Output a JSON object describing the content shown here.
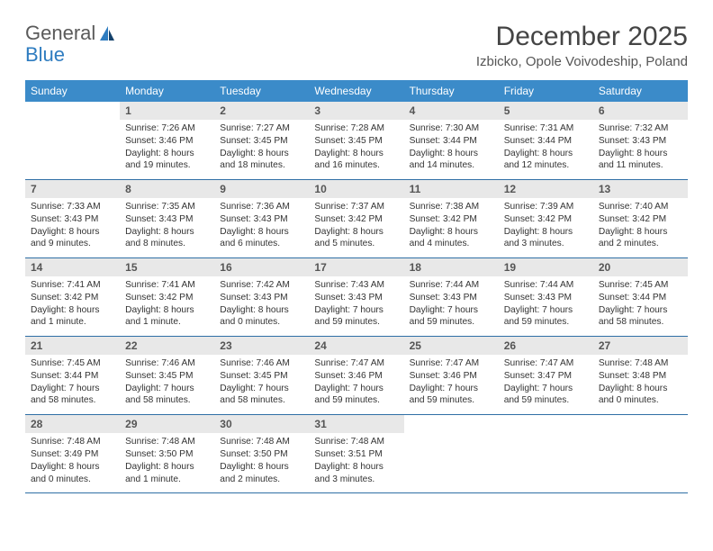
{
  "brand": {
    "part1": "General",
    "part2": "Blue"
  },
  "title": "December 2025",
  "location": "Izbicko, Opole Voivodeship, Poland",
  "colors": {
    "header_bg": "#3b8bc9",
    "header_text": "#ffffff",
    "daynum_bg": "#e8e8e8",
    "rule": "#2f6fa5",
    "brand_gray": "#5a5a5a",
    "brand_blue": "#2e7cc0"
  },
  "day_headers": [
    "Sunday",
    "Monday",
    "Tuesday",
    "Wednesday",
    "Thursday",
    "Friday",
    "Saturday"
  ],
  "weeks": [
    {
      "nums": [
        "",
        "1",
        "2",
        "3",
        "4",
        "5",
        "6"
      ],
      "cells": [
        null,
        {
          "sunrise": "7:26 AM",
          "sunset": "3:46 PM",
          "daylight": "8 hours and 19 minutes."
        },
        {
          "sunrise": "7:27 AM",
          "sunset": "3:45 PM",
          "daylight": "8 hours and 18 minutes."
        },
        {
          "sunrise": "7:28 AM",
          "sunset": "3:45 PM",
          "daylight": "8 hours and 16 minutes."
        },
        {
          "sunrise": "7:30 AM",
          "sunset": "3:44 PM",
          "daylight": "8 hours and 14 minutes."
        },
        {
          "sunrise": "7:31 AM",
          "sunset": "3:44 PM",
          "daylight": "8 hours and 12 minutes."
        },
        {
          "sunrise": "7:32 AM",
          "sunset": "3:43 PM",
          "daylight": "8 hours and 11 minutes."
        }
      ]
    },
    {
      "nums": [
        "7",
        "8",
        "9",
        "10",
        "11",
        "12",
        "13"
      ],
      "cells": [
        {
          "sunrise": "7:33 AM",
          "sunset": "3:43 PM",
          "daylight": "8 hours and 9 minutes."
        },
        {
          "sunrise": "7:35 AM",
          "sunset": "3:43 PM",
          "daylight": "8 hours and 8 minutes."
        },
        {
          "sunrise": "7:36 AM",
          "sunset": "3:43 PM",
          "daylight": "8 hours and 6 minutes."
        },
        {
          "sunrise": "7:37 AM",
          "sunset": "3:42 PM",
          "daylight": "8 hours and 5 minutes."
        },
        {
          "sunrise": "7:38 AM",
          "sunset": "3:42 PM",
          "daylight": "8 hours and 4 minutes."
        },
        {
          "sunrise": "7:39 AM",
          "sunset": "3:42 PM",
          "daylight": "8 hours and 3 minutes."
        },
        {
          "sunrise": "7:40 AM",
          "sunset": "3:42 PM",
          "daylight": "8 hours and 2 minutes."
        }
      ]
    },
    {
      "nums": [
        "14",
        "15",
        "16",
        "17",
        "18",
        "19",
        "20"
      ],
      "cells": [
        {
          "sunrise": "7:41 AM",
          "sunset": "3:42 PM",
          "daylight": "8 hours and 1 minute."
        },
        {
          "sunrise": "7:41 AM",
          "sunset": "3:42 PM",
          "daylight": "8 hours and 1 minute."
        },
        {
          "sunrise": "7:42 AM",
          "sunset": "3:43 PM",
          "daylight": "8 hours and 0 minutes."
        },
        {
          "sunrise": "7:43 AM",
          "sunset": "3:43 PM",
          "daylight": "7 hours and 59 minutes."
        },
        {
          "sunrise": "7:44 AM",
          "sunset": "3:43 PM",
          "daylight": "7 hours and 59 minutes."
        },
        {
          "sunrise": "7:44 AM",
          "sunset": "3:43 PM",
          "daylight": "7 hours and 59 minutes."
        },
        {
          "sunrise": "7:45 AM",
          "sunset": "3:44 PM",
          "daylight": "7 hours and 58 minutes."
        }
      ]
    },
    {
      "nums": [
        "21",
        "22",
        "23",
        "24",
        "25",
        "26",
        "27"
      ],
      "cells": [
        {
          "sunrise": "7:45 AM",
          "sunset": "3:44 PM",
          "daylight": "7 hours and 58 minutes."
        },
        {
          "sunrise": "7:46 AM",
          "sunset": "3:45 PM",
          "daylight": "7 hours and 58 minutes."
        },
        {
          "sunrise": "7:46 AM",
          "sunset": "3:45 PM",
          "daylight": "7 hours and 58 minutes."
        },
        {
          "sunrise": "7:47 AM",
          "sunset": "3:46 PM",
          "daylight": "7 hours and 59 minutes."
        },
        {
          "sunrise": "7:47 AM",
          "sunset": "3:46 PM",
          "daylight": "7 hours and 59 minutes."
        },
        {
          "sunrise": "7:47 AM",
          "sunset": "3:47 PM",
          "daylight": "7 hours and 59 minutes."
        },
        {
          "sunrise": "7:48 AM",
          "sunset": "3:48 PM",
          "daylight": "8 hours and 0 minutes."
        }
      ]
    },
    {
      "nums": [
        "28",
        "29",
        "30",
        "31",
        "",
        "",
        ""
      ],
      "cells": [
        {
          "sunrise": "7:48 AM",
          "sunset": "3:49 PM",
          "daylight": "8 hours and 0 minutes."
        },
        {
          "sunrise": "7:48 AM",
          "sunset": "3:50 PM",
          "daylight": "8 hours and 1 minute."
        },
        {
          "sunrise": "7:48 AM",
          "sunset": "3:50 PM",
          "daylight": "8 hours and 2 minutes."
        },
        {
          "sunrise": "7:48 AM",
          "sunset": "3:51 PM",
          "daylight": "8 hours and 3 minutes."
        },
        null,
        null,
        null
      ]
    }
  ],
  "labels": {
    "sunrise": "Sunrise:",
    "sunset": "Sunset:",
    "daylight": "Daylight:"
  }
}
